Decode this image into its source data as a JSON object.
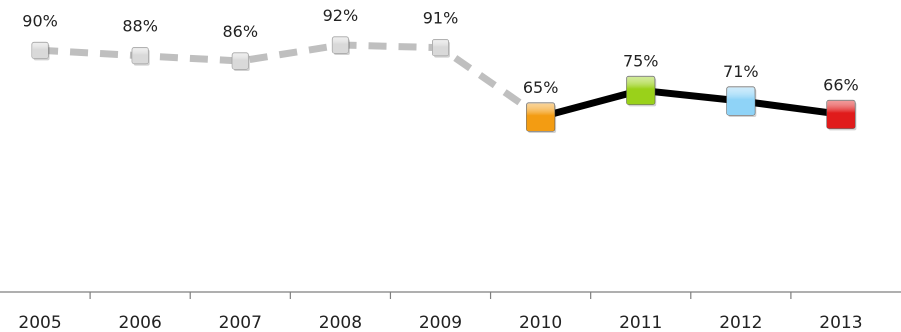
{
  "chart_data": {
    "type": "line",
    "title": "",
    "xlabel": "",
    "ylabel": "",
    "categories": [
      "2005",
      "2006",
      "2007",
      "2008",
      "2009",
      "2010",
      "2011",
      "2012",
      "2013"
    ],
    "values": [
      90,
      88,
      86,
      92,
      91,
      65,
      75,
      71,
      66
    ],
    "data_labels": [
      "90%",
      "88%",
      "86%",
      "92%",
      "91%",
      "65%",
      "75%",
      "71%",
      "66%"
    ],
    "ylim": [
      0,
      100
    ],
    "grid": false,
    "legend": "none",
    "segments": [
      {
        "style": "dashed",
        "color": "#bfbfbf",
        "from_index": 0,
        "to_index": 5
      },
      {
        "style": "solid",
        "color": "#000000",
        "from_index": 5,
        "to_index": 8
      }
    ],
    "marker_colors": [
      "#d9d9d9",
      "#d9d9d9",
      "#d9d9d9",
      "#d9d9d9",
      "#d9d9d9",
      "#f39c12",
      "#9ad11a",
      "#8fd3f7",
      "#e01b1b"
    ],
    "axis_color": "#7f7f7f"
  }
}
